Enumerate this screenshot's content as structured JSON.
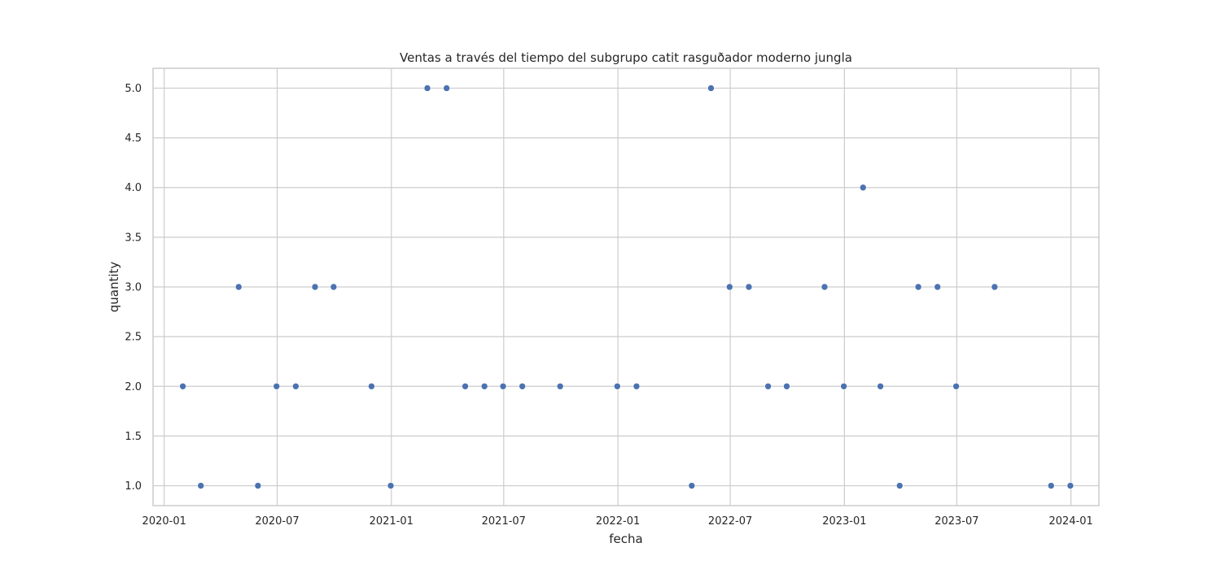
{
  "chart_data": {
    "type": "scatter",
    "title": "Ventas a través del tiempo del subgrupo catit rasguðador  moderno jungla",
    "xlabel": "fecha",
    "ylabel": "quantity",
    "x_type": "date",
    "xlim": [
      "2019-12-14",
      "2024-02-15"
    ],
    "ylim": [
      0.8,
      5.2
    ],
    "x_ticks": [
      "2020-01",
      "2020-07",
      "2021-01",
      "2021-07",
      "2022-01",
      "2022-07",
      "2023-01",
      "2023-07",
      "2024-01"
    ],
    "y_ticks": [
      "1.0",
      "1.5",
      "2.0",
      "2.5",
      "3.0",
      "3.5",
      "4.0",
      "4.5",
      "5.0"
    ],
    "grid": true,
    "marker_color": "#4c72b0",
    "points": [
      {
        "x": "2020-01-31",
        "y": 2
      },
      {
        "x": "2020-02-29",
        "y": 1
      },
      {
        "x": "2020-04-30",
        "y": 3
      },
      {
        "x": "2020-05-31",
        "y": 1
      },
      {
        "x": "2020-06-30",
        "y": 2
      },
      {
        "x": "2020-07-31",
        "y": 2
      },
      {
        "x": "2020-08-31",
        "y": 3
      },
      {
        "x": "2020-09-30",
        "y": 3
      },
      {
        "x": "2020-11-30",
        "y": 2
      },
      {
        "x": "2020-12-31",
        "y": 1
      },
      {
        "x": "2021-02-28",
        "y": 5
      },
      {
        "x": "2021-03-31",
        "y": 5
      },
      {
        "x": "2021-04-30",
        "y": 2
      },
      {
        "x": "2021-05-31",
        "y": 2
      },
      {
        "x": "2021-06-30",
        "y": 2
      },
      {
        "x": "2021-07-31",
        "y": 2
      },
      {
        "x": "2021-09-30",
        "y": 2
      },
      {
        "x": "2021-12-31",
        "y": 2
      },
      {
        "x": "2022-01-31",
        "y": 2
      },
      {
        "x": "2022-04-30",
        "y": 1
      },
      {
        "x": "2022-05-31",
        "y": 5
      },
      {
        "x": "2022-06-30",
        "y": 3
      },
      {
        "x": "2022-07-31",
        "y": 3
      },
      {
        "x": "2022-08-31",
        "y": 2
      },
      {
        "x": "2022-09-30",
        "y": 2
      },
      {
        "x": "2022-11-30",
        "y": 3
      },
      {
        "x": "2022-12-31",
        "y": 2
      },
      {
        "x": "2023-01-31",
        "y": 4
      },
      {
        "x": "2023-02-28",
        "y": 2
      },
      {
        "x": "2023-03-31",
        "y": 1
      },
      {
        "x": "2023-04-30",
        "y": 3
      },
      {
        "x": "2023-05-31",
        "y": 3
      },
      {
        "x": "2023-06-30",
        "y": 2
      },
      {
        "x": "2023-08-31",
        "y": 3
      },
      {
        "x": "2023-11-30",
        "y": 1
      },
      {
        "x": "2023-12-31",
        "y": 1
      }
    ]
  }
}
